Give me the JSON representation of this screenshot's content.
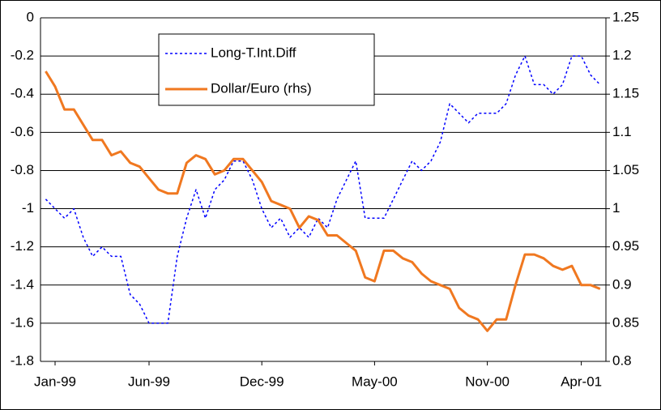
{
  "chart_data": {
    "type": "line",
    "categories": [
      null,
      "Jan-99",
      null,
      null,
      null,
      null,
      null,
      null,
      null,
      null,
      null,
      "Jun-99",
      null,
      null,
      null,
      null,
      null,
      null,
      null,
      null,
      null,
      null,
      null,
      "Dec-99",
      null,
      null,
      null,
      null,
      null,
      null,
      null,
      null,
      null,
      null,
      null,
      "May-00",
      null,
      null,
      null,
      null,
      null,
      null,
      null,
      null,
      null,
      null,
      null,
      "Nov-00",
      null,
      null,
      null,
      null,
      null,
      null,
      null,
      null,
      null,
      "Apr-01",
      null,
      null
    ],
    "series": [
      {
        "name": "Long-T.Int.Diff",
        "color": "#0000ff",
        "axis": "y",
        "dash": true,
        "values": [
          -0.95,
          -1.0,
          -1.05,
          -1.0,
          -1.15,
          -1.25,
          -1.2,
          -1.25,
          -1.25,
          -1.45,
          -1.5,
          -1.6,
          -1.6,
          -1.6,
          -1.25,
          -1.05,
          -0.9,
          -1.05,
          -0.9,
          -0.85,
          -0.75,
          -0.75,
          -0.85,
          -1.0,
          -1.1,
          -1.05,
          -1.15,
          -1.1,
          -1.15,
          -1.05,
          -1.1,
          -0.95,
          -0.85,
          -0.75,
          -1.05,
          -1.05,
          -1.05,
          -0.95,
          -0.85,
          -0.75,
          -0.8,
          -0.75,
          -0.65,
          -0.45,
          -0.5,
          -0.55,
          -0.5,
          -0.5,
          -0.5,
          -0.45,
          -0.3,
          -0.2,
          -0.35,
          -0.35,
          -0.4,
          -0.35,
          -0.2,
          -0.2,
          -0.3,
          -0.35
        ]
      },
      {
        "name": "Dollar/Euro (rhs)",
        "color": "#f07820",
        "axis": "y2",
        "dash": false,
        "values": [
          1.18,
          1.16,
          1.13,
          1.13,
          1.11,
          1.09,
          1.09,
          1.07,
          1.075,
          1.06,
          1.055,
          1.04,
          1.025,
          1.02,
          1.02,
          1.06,
          1.07,
          1.065,
          1.045,
          1.05,
          1.065,
          1.065,
          1.05,
          1.035,
          1.01,
          1.005,
          1.0,
          0.975,
          0.99,
          0.985,
          0.965,
          0.965,
          0.955,
          0.945,
          0.91,
          0.905,
          0.945,
          0.945,
          0.935,
          0.93,
          0.915,
          0.905,
          0.9,
          0.895,
          0.87,
          0.86,
          0.855,
          0.84,
          0.855,
          0.855,
          0.9,
          0.94,
          0.94,
          0.935,
          0.925,
          0.92,
          0.925,
          0.9,
          0.9,
          0.895
        ]
      }
    ],
    "ylim": [
      -1.8,
      0
    ],
    "yticks": [
      0,
      -0.2,
      -0.4,
      -0.6,
      -0.8,
      -1,
      -1.2,
      -1.4,
      -1.6,
      -1.8
    ],
    "y2lim": [
      0.8,
      1.25
    ],
    "y2ticks": [
      1.25,
      1.2,
      1.15,
      1.1,
      1.05,
      1,
      0.95,
      0.9,
      0.85,
      0.8
    ],
    "grid": true,
    "legend": "top-left"
  }
}
